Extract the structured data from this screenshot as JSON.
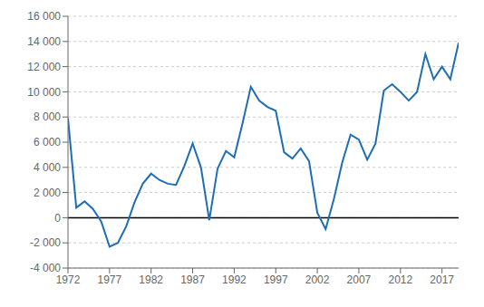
{
  "chart_data": {
    "type": "line",
    "x": [
      1972,
      1973,
      1974,
      1975,
      1976,
      1977,
      1978,
      1979,
      1980,
      1981,
      1982,
      1983,
      1984,
      1985,
      1986,
      1987,
      1988,
      1989,
      1990,
      1991,
      1992,
      1993,
      1994,
      1995,
      1996,
      1997,
      1998,
      1999,
      2000,
      2001,
      2002,
      2003,
      2004,
      2005,
      2006,
      2007,
      2008,
      2009,
      2010,
      2011,
      2012,
      2013,
      2014,
      2015,
      2016,
      2017,
      2018,
      2019
    ],
    "values": [
      7900,
      800,
      1300,
      700,
      -300,
      -2300,
      -2000,
      -700,
      1200,
      2700,
      3500,
      3000,
      2700,
      2600,
      4100,
      5900,
      4000,
      -200,
      3900,
      5300,
      4800,
      7500,
      10400,
      9300,
      8800,
      8500,
      5200,
      4700,
      5500,
      4500,
      400,
      -900,
      1500,
      4400,
      6600,
      6200,
      4600,
      5900,
      10100,
      10600,
      10000,
      9300,
      10000,
      13000,
      11000,
      12000,
      11000,
      13900
    ],
    "color": "#1f6eb5",
    "xlim": [
      1972,
      2019
    ],
    "xticks": [
      1972,
      1977,
      1982,
      1987,
      1992,
      1997,
      2002,
      2007,
      2012,
      2017
    ],
    "ylim": [
      -4000,
      16000
    ],
    "yticks": [
      {
        "value": -4000,
        "label": "-4 000"
      },
      {
        "value": -2000,
        "label": "-2 000"
      },
      0,
      {
        "value": 2000,
        "label": "2 000"
      },
      {
        "value": 4000,
        "label": "4 000"
      },
      {
        "value": 6000,
        "label": "6 000"
      },
      {
        "value": 8000,
        "label": "8 000"
      },
      {
        "value": 10000,
        "label": "10 000"
      },
      {
        "value": 12000,
        "label": "12 000"
      },
      {
        "value": 14000,
        "label": "14 000"
      },
      {
        "value": 16000,
        "label": "16 000"
      }
    ],
    "grid": "y"
  }
}
